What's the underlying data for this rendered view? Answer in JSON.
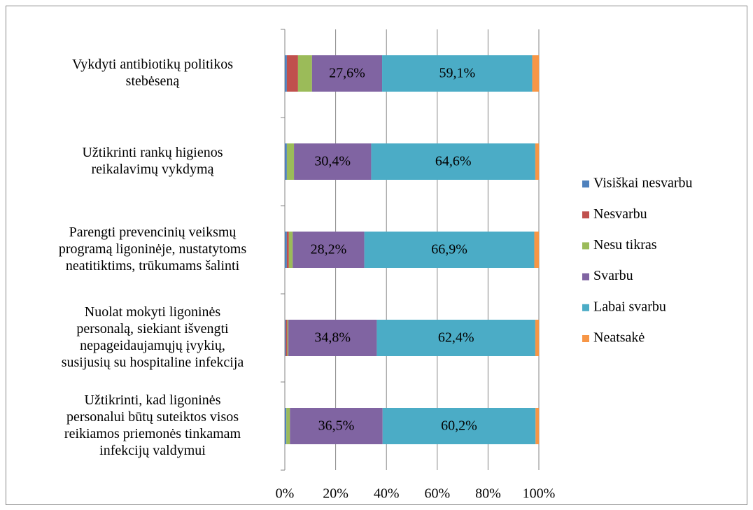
{
  "chart_data": {
    "type": "stacked_barh",
    "categories": [
      "Vykdyti antibiotikų politikos\nstebėseną",
      "Užtikrinti rankų higienos\nreikalavimų vykdymą",
      "Parengti prevencinių veiksmų\nprogramą ligoninėje, nustatytoms\nneatitiktims, trūkumams šalinti",
      "Nuolat mokyti ligoninės\npersonalą, siekiant  išvengti\nnepageidaujamųjų įvykių,\nsusijusių su hospitaline infekcija",
      "Užtikrinti, kad ligoninės\npersonalui būtų suteiktos visos\nreikiamos priemonės tinkamam\ninfekcijų valdymui"
    ],
    "series": [
      {
        "name": "Visiškai nesvarbu",
        "color": "#4f81bd",
        "values": [
          0.8,
          0.8,
          0.8,
          0.4,
          0.6
        ]
      },
      {
        "name": "Nesvarbu",
        "color": "#c0504d",
        "values": [
          4.4,
          0,
          0.8,
          0.6,
          0
        ]
      },
      {
        "name": "Nesu tikras",
        "color": "#9bbb59",
        "values": [
          5.5,
          2.8,
          1.5,
          0.4,
          1.4
        ]
      },
      {
        "name": "Svarbu",
        "color": "#8064a2",
        "values": [
          27.6,
          30.4,
          28.2,
          34.8,
          36.5
        ],
        "value_labels": [
          "27,6%",
          "30,4%",
          "28,2%",
          "34,8%",
          "36,5%"
        ]
      },
      {
        "name": "Labai svarbu",
        "color": "#4bacc6",
        "values": [
          59.1,
          64.6,
          66.9,
          62.4,
          60.2
        ],
        "value_labels": [
          "59,1%",
          "64,6%",
          "66,9%",
          "62,4%",
          "60,2%"
        ]
      },
      {
        "name": "Neatsakė",
        "color": "#f79646",
        "values": [
          2.6,
          1.4,
          1.8,
          1.4,
          1.3
        ]
      }
    ],
    "xlim": [
      0,
      100
    ],
    "xticks": [
      {
        "value": 0,
        "label": "0%"
      },
      {
        "value": 20,
        "label": "20%"
      },
      {
        "value": 40,
        "label": "40%"
      },
      {
        "value": 60,
        "label": "60%"
      },
      {
        "value": 80,
        "label": "80%"
      },
      {
        "value": 100,
        "label": "100%"
      }
    ],
    "grid": true,
    "legend": "right"
  }
}
